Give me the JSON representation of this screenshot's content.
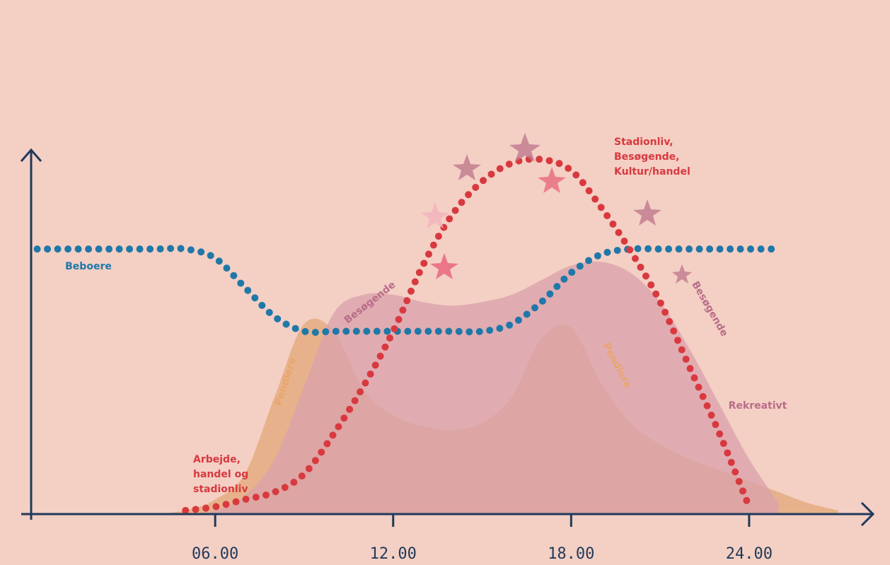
{
  "chart_data": {
    "type": "line",
    "x": [
      0,
      1,
      2,
      3,
      4,
      5,
      6,
      7,
      8,
      9,
      10,
      11,
      12,
      13,
      14,
      15,
      16,
      17,
      18,
      19,
      20,
      21,
      22,
      23,
      24,
      25,
      26,
      27
    ],
    "xlim": [
      -0.3,
      28.2
    ],
    "ylim": [
      0,
      100
    ],
    "xticks": [
      {
        "value": 6,
        "label": "06.00"
      },
      {
        "value": 12,
        "label": "12.00"
      },
      {
        "value": 18,
        "label": "18.00"
      },
      {
        "value": 24,
        "label": "24.00"
      }
    ],
    "series": [
      {
        "name": "Pendlere",
        "kind": "area",
        "color": "#e3a878",
        "values": [
          null,
          null,
          null,
          null,
          0,
          1,
          4,
          11,
          32,
          52,
          50,
          34,
          27,
          24,
          23,
          25,
          32,
          48,
          51,
          36,
          25,
          19,
          15,
          12,
          9,
          6,
          3,
          1
        ]
      },
      {
        "name": "Besøgende",
        "kind": "area",
        "color": "#d9a0ab",
        "values": [
          null,
          null,
          null,
          null,
          null,
          0,
          1,
          5,
          15,
          35,
          55,
          60,
          60,
          58,
          57,
          58,
          60,
          64,
          68,
          69,
          66,
          58,
          45,
          30,
          15,
          3,
          null,
          null
        ]
      },
      {
        "name": "Beboere",
        "kind": "dots",
        "color": "#1f78a8",
        "values": [
          72.5,
          72.5,
          72.5,
          72.5,
          72.5,
          72.5,
          70,
          62,
          54,
          50,
          50,
          50,
          50,
          50,
          50,
          50,
          52,
          58,
          66,
          71,
          72.5,
          72.5,
          72.5,
          72.5,
          72.5,
          72.5,
          null,
          null
        ]
      },
      {
        "kind": "dots",
        "color": "#d8393f",
        "values": [
          null,
          null,
          null,
          null,
          null,
          1,
          2,
          4,
          6,
          11,
          22,
          35,
          50,
          68,
          82,
          91,
          96,
          97,
          94,
          84,
          72,
          58,
          40,
          22,
          2,
          null,
          null,
          null
        ]
      }
    ],
    "annotations": [
      {
        "lines": [
          "Arbejde,",
          "handel og",
          "stadionliv"
        ]
      },
      {
        "lines": [
          "Stadionliv,",
          "Besøgende,",
          "Kultur/handel"
        ]
      },
      {
        "text": "Rekreativt"
      }
    ]
  }
}
